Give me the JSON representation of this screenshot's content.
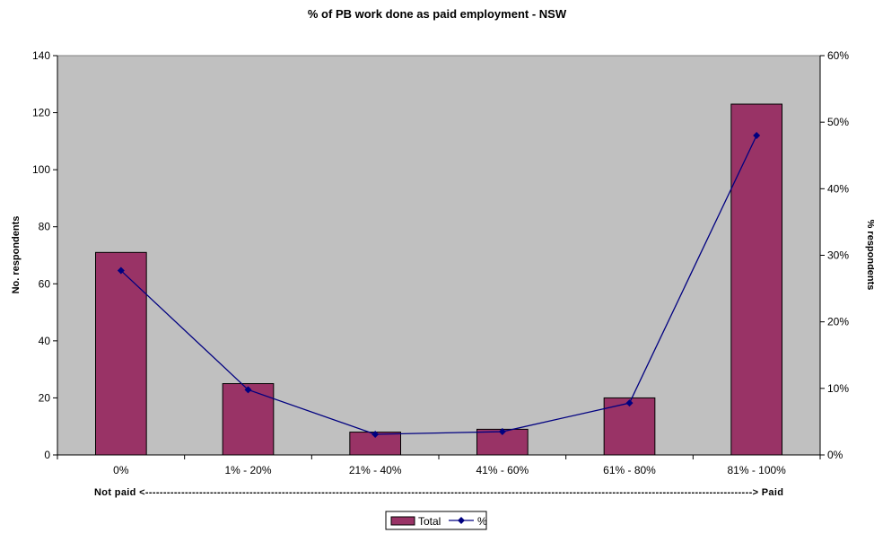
{
  "chart_data": {
    "type": "bar",
    "title": "% of PB work done as paid employment - NSW",
    "categories": [
      "0%",
      "1% - 20%",
      "21% - 40%",
      "41% - 60%",
      "61% - 80%",
      "81% - 100%"
    ],
    "x_annotation": "Not paid <-------------------------------------------------------------------------------------------------------------------------------------------------------------------------> Paid",
    "ylabel": "No. respondents",
    "y2label": "% respondents",
    "ylim": [
      0,
      140
    ],
    "y_ticks": [
      0,
      20,
      40,
      60,
      80,
      100,
      120,
      140
    ],
    "y2lim": [
      0,
      60
    ],
    "y2_ticks": [
      "0%",
      "10%",
      "20%",
      "30%",
      "40%",
      "50%",
      "60%"
    ],
    "series": [
      {
        "name": "Total",
        "type": "bar",
        "axis": "left",
        "color": "#993366",
        "values": [
          71,
          25,
          8,
          9,
          20,
          123
        ]
      },
      {
        "name": "%",
        "type": "line",
        "axis": "right",
        "color": "#000080",
        "values": [
          27.7,
          9.8,
          3.1,
          3.5,
          7.8,
          48.0
        ]
      }
    ],
    "grid": false,
    "plot_background": "#c0c0c0",
    "legend_position": "bottom-center"
  }
}
